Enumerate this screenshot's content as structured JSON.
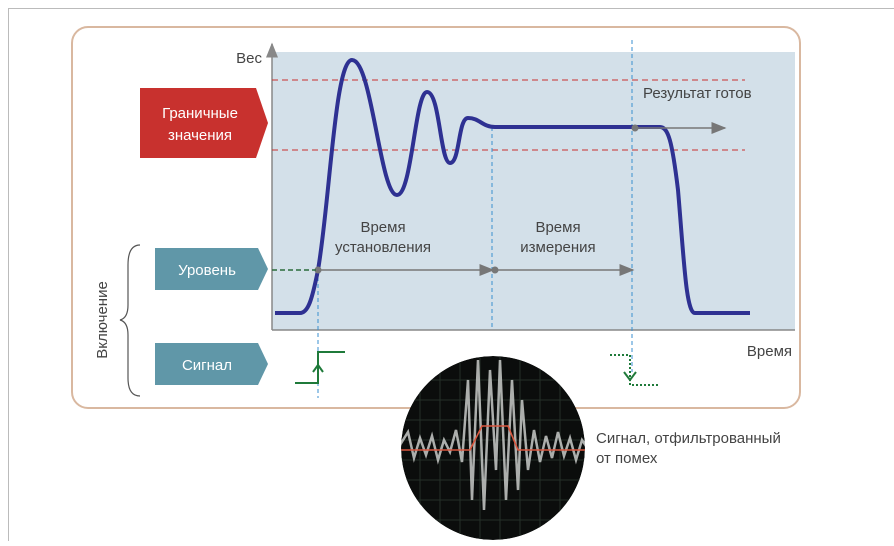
{
  "axes": {
    "y_label": "Вес",
    "x_label": "Время"
  },
  "tags": {
    "limits": {
      "lines": [
        "Граничные",
        "значения"
      ]
    },
    "level": "Уровень",
    "signal": "Сигнал"
  },
  "group_label": "Включение",
  "phases": {
    "settling": {
      "lines": [
        "Время",
        "установления"
      ]
    },
    "measuring": {
      "lines": [
        "Время",
        "измерения"
      ]
    }
  },
  "result": "Результат готов",
  "caption": {
    "lines": [
      "Сигнал, отфильтрованный",
      "от помех"
    ]
  }
}
